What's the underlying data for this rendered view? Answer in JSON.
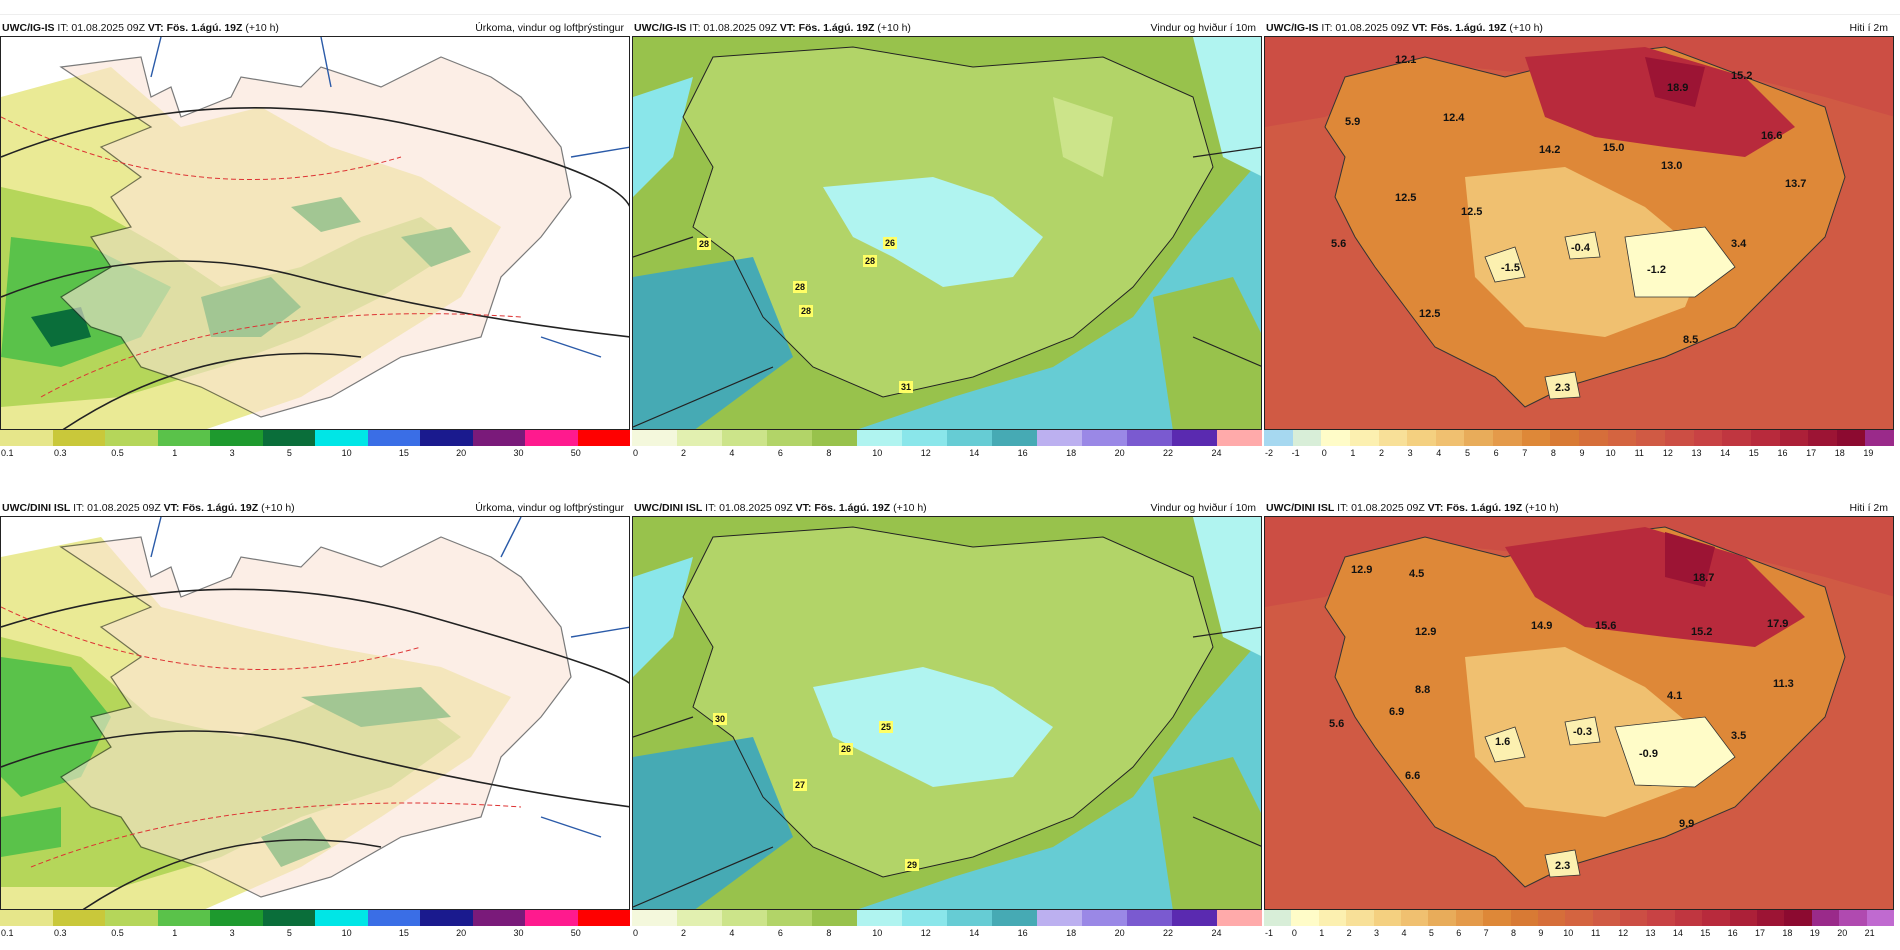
{
  "rows": [
    {
      "model": "UWC/IG-IS",
      "it": " IT: 01.08.2025 09Z ",
      "vt": "VT: Fös. 1.ágú. 19Z",
      "lead": " (+10 h)",
      "precip": {
        "title": "Úrkoma, vindur og loftþrýstingur",
        "ticks": [
          "0.1",
          "0.3",
          "0.5",
          "1",
          "3",
          "5",
          "10",
          "15",
          "20",
          "30",
          "50"
        ],
        "colors": [
          "#e6e68a",
          "#c9c83a",
          "#b5d65a",
          "#5ac24a",
          "#1e9a2e",
          "#0a6e3a",
          "#00e6e6",
          "#3a6ee6",
          "#1a1a8e",
          "#7a1a7a",
          "#ff1a8e",
          "#ff0000"
        ]
      },
      "wind": {
        "title": "Vindur og hviður í 10m",
        "ticks": [
          "0",
          "2",
          "4",
          "6",
          "8",
          "10",
          "12",
          "14",
          "16",
          "18",
          "20",
          "22",
          "24"
        ],
        "colors": [
          "#f4f8dc",
          "#e2f0b0",
          "#cce48a",
          "#b2d468",
          "#98c24c",
          "#b0f4f0",
          "#8ae6ea",
          "#66ccd4",
          "#46aab4",
          "#bcb0f0",
          "#9a88e6",
          "#7a5ad0",
          "#5a2ab0",
          "#ffaaaa"
        ],
        "gusts": [
          "28",
          "28",
          "26",
          "28",
          "28",
          "31"
        ]
      },
      "temp": {
        "title": "Hiti í 2m",
        "ticks": [
          "-2",
          "-1",
          "0",
          "1",
          "2",
          "3",
          "4",
          "5",
          "6",
          "7",
          "8",
          "9",
          "10",
          "11",
          "12",
          "13",
          "14",
          "15",
          "16",
          "17",
          "18",
          "19"
        ],
        "colors": [
          "#a6d8f0",
          "#d8eed8",
          "#fffcc8",
          "#fcf0b0",
          "#f8e098",
          "#f4d080",
          "#f0c070",
          "#e8ac5a",
          "#e49a4a",
          "#de8838",
          "#d87a34",
          "#d66e3a",
          "#d46440",
          "#d05a44",
          "#cc4e44",
          "#c84244",
          "#c03640",
          "#b82a3c",
          "#ac2038",
          "#9c1434",
          "#8c0a30",
          "#9a2a8a"
        ],
        "labels": [
          "12.1",
          "5.9",
          "12.4",
          "18.9",
          "15.2",
          "16.6",
          "14.2",
          "15.0",
          "13.0",
          "13.7",
          "12.5",
          "12.5",
          "5.6",
          "-1.5",
          "-0.4",
          "-1.2",
          "3.4",
          "12.5",
          "8.5",
          "2.3"
        ]
      }
    },
    {
      "model": "UWC/DINI ISL",
      "it": " IT: 01.08.2025 09Z ",
      "vt": "VT: Fös. 1.ágú. 19Z",
      "lead": " (+10 h)",
      "precip": {
        "title": "Úrkoma, vindur og loftþrýstingur",
        "ticks": [
          "0.1",
          "0.3",
          "0.5",
          "1",
          "3",
          "5",
          "10",
          "15",
          "20",
          "30",
          "50"
        ],
        "colors": [
          "#e6e68a",
          "#c9c83a",
          "#b5d65a",
          "#5ac24a",
          "#1e9a2e",
          "#0a6e3a",
          "#00e6e6",
          "#3a6ee6",
          "#1a1a8e",
          "#7a1a7a",
          "#ff1a8e",
          "#ff0000"
        ]
      },
      "wind": {
        "title": "Vindur og hviður í 10m",
        "ticks": [
          "0",
          "2",
          "4",
          "6",
          "8",
          "10",
          "12",
          "14",
          "16",
          "18",
          "20",
          "22",
          "24"
        ],
        "colors": [
          "#f4f8dc",
          "#e2f0b0",
          "#cce48a",
          "#b2d468",
          "#98c24c",
          "#b0f4f0",
          "#8ae6ea",
          "#66ccd4",
          "#46aab4",
          "#bcb0f0",
          "#9a88e6",
          "#7a5ad0",
          "#5a2ab0",
          "#ffaaaa"
        ],
        "gusts": [
          "30",
          "26",
          "25",
          "27",
          "29"
        ]
      },
      "temp": {
        "title": "Hiti í 2m",
        "ticks": [
          "-1",
          "0",
          "1",
          "2",
          "3",
          "4",
          "5",
          "6",
          "7",
          "8",
          "9",
          "10",
          "11",
          "12",
          "13",
          "14",
          "15",
          "16",
          "17",
          "18",
          "19",
          "20",
          "21"
        ],
        "colors": [
          "#d8eed8",
          "#fffcc8",
          "#fcf0b0",
          "#f8e098",
          "#f4d080",
          "#f0c070",
          "#e8ac5a",
          "#e49a4a",
          "#de8838",
          "#d87a34",
          "#d66e3a",
          "#d46440",
          "#d05a44",
          "#cc4e44",
          "#c84244",
          "#c03640",
          "#b82a3c",
          "#ac2038",
          "#9c1434",
          "#8c0a30",
          "#9a2a8a",
          "#b04ab0",
          "#c06ad0"
        ],
        "labels": [
          "12.9",
          "4.5",
          "18.7",
          "12.9",
          "14.9",
          "15.6",
          "15.2",
          "17.9",
          "11.3",
          "8.8",
          "4.1",
          "5.6",
          "6.9",
          "1.6",
          "-0.3",
          "-0.9",
          "3.5",
          "6.6",
          "9.9",
          "2.3"
        ]
      }
    }
  ]
}
